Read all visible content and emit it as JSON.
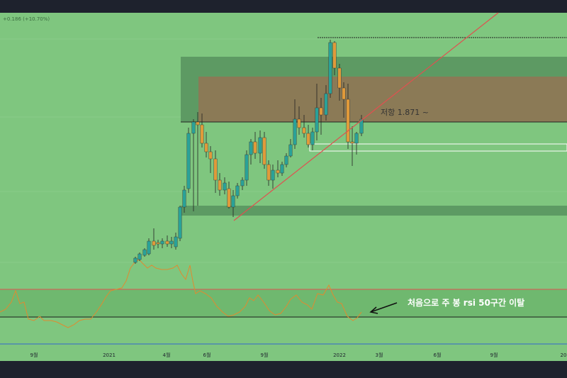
{
  "header": {
    "change_text": "+0.186 (+10.70%)"
  },
  "chart_data": {
    "type": "candlestick",
    "x_ticks": [
      "9월",
      "2021",
      "4월",
      "6월",
      "9월",
      "2022",
      "3월",
      "6월",
      "9월",
      "20"
    ],
    "resistance_label": "저항 1.871 ~",
    "annotation": "처음으로 주 봉 rsi 50구간 이탈",
    "colors": {
      "background": "#7fc67f",
      "up": "#2aa198",
      "down": "#e09a3a",
      "trendline": "#e05050",
      "rsi_line": "#e08a30",
      "rsi_upper": "#e05050",
      "rsi_mid": "#222222",
      "resistance_zone": "#8b7a56",
      "zone_dark": "#5d9a63"
    }
  }
}
